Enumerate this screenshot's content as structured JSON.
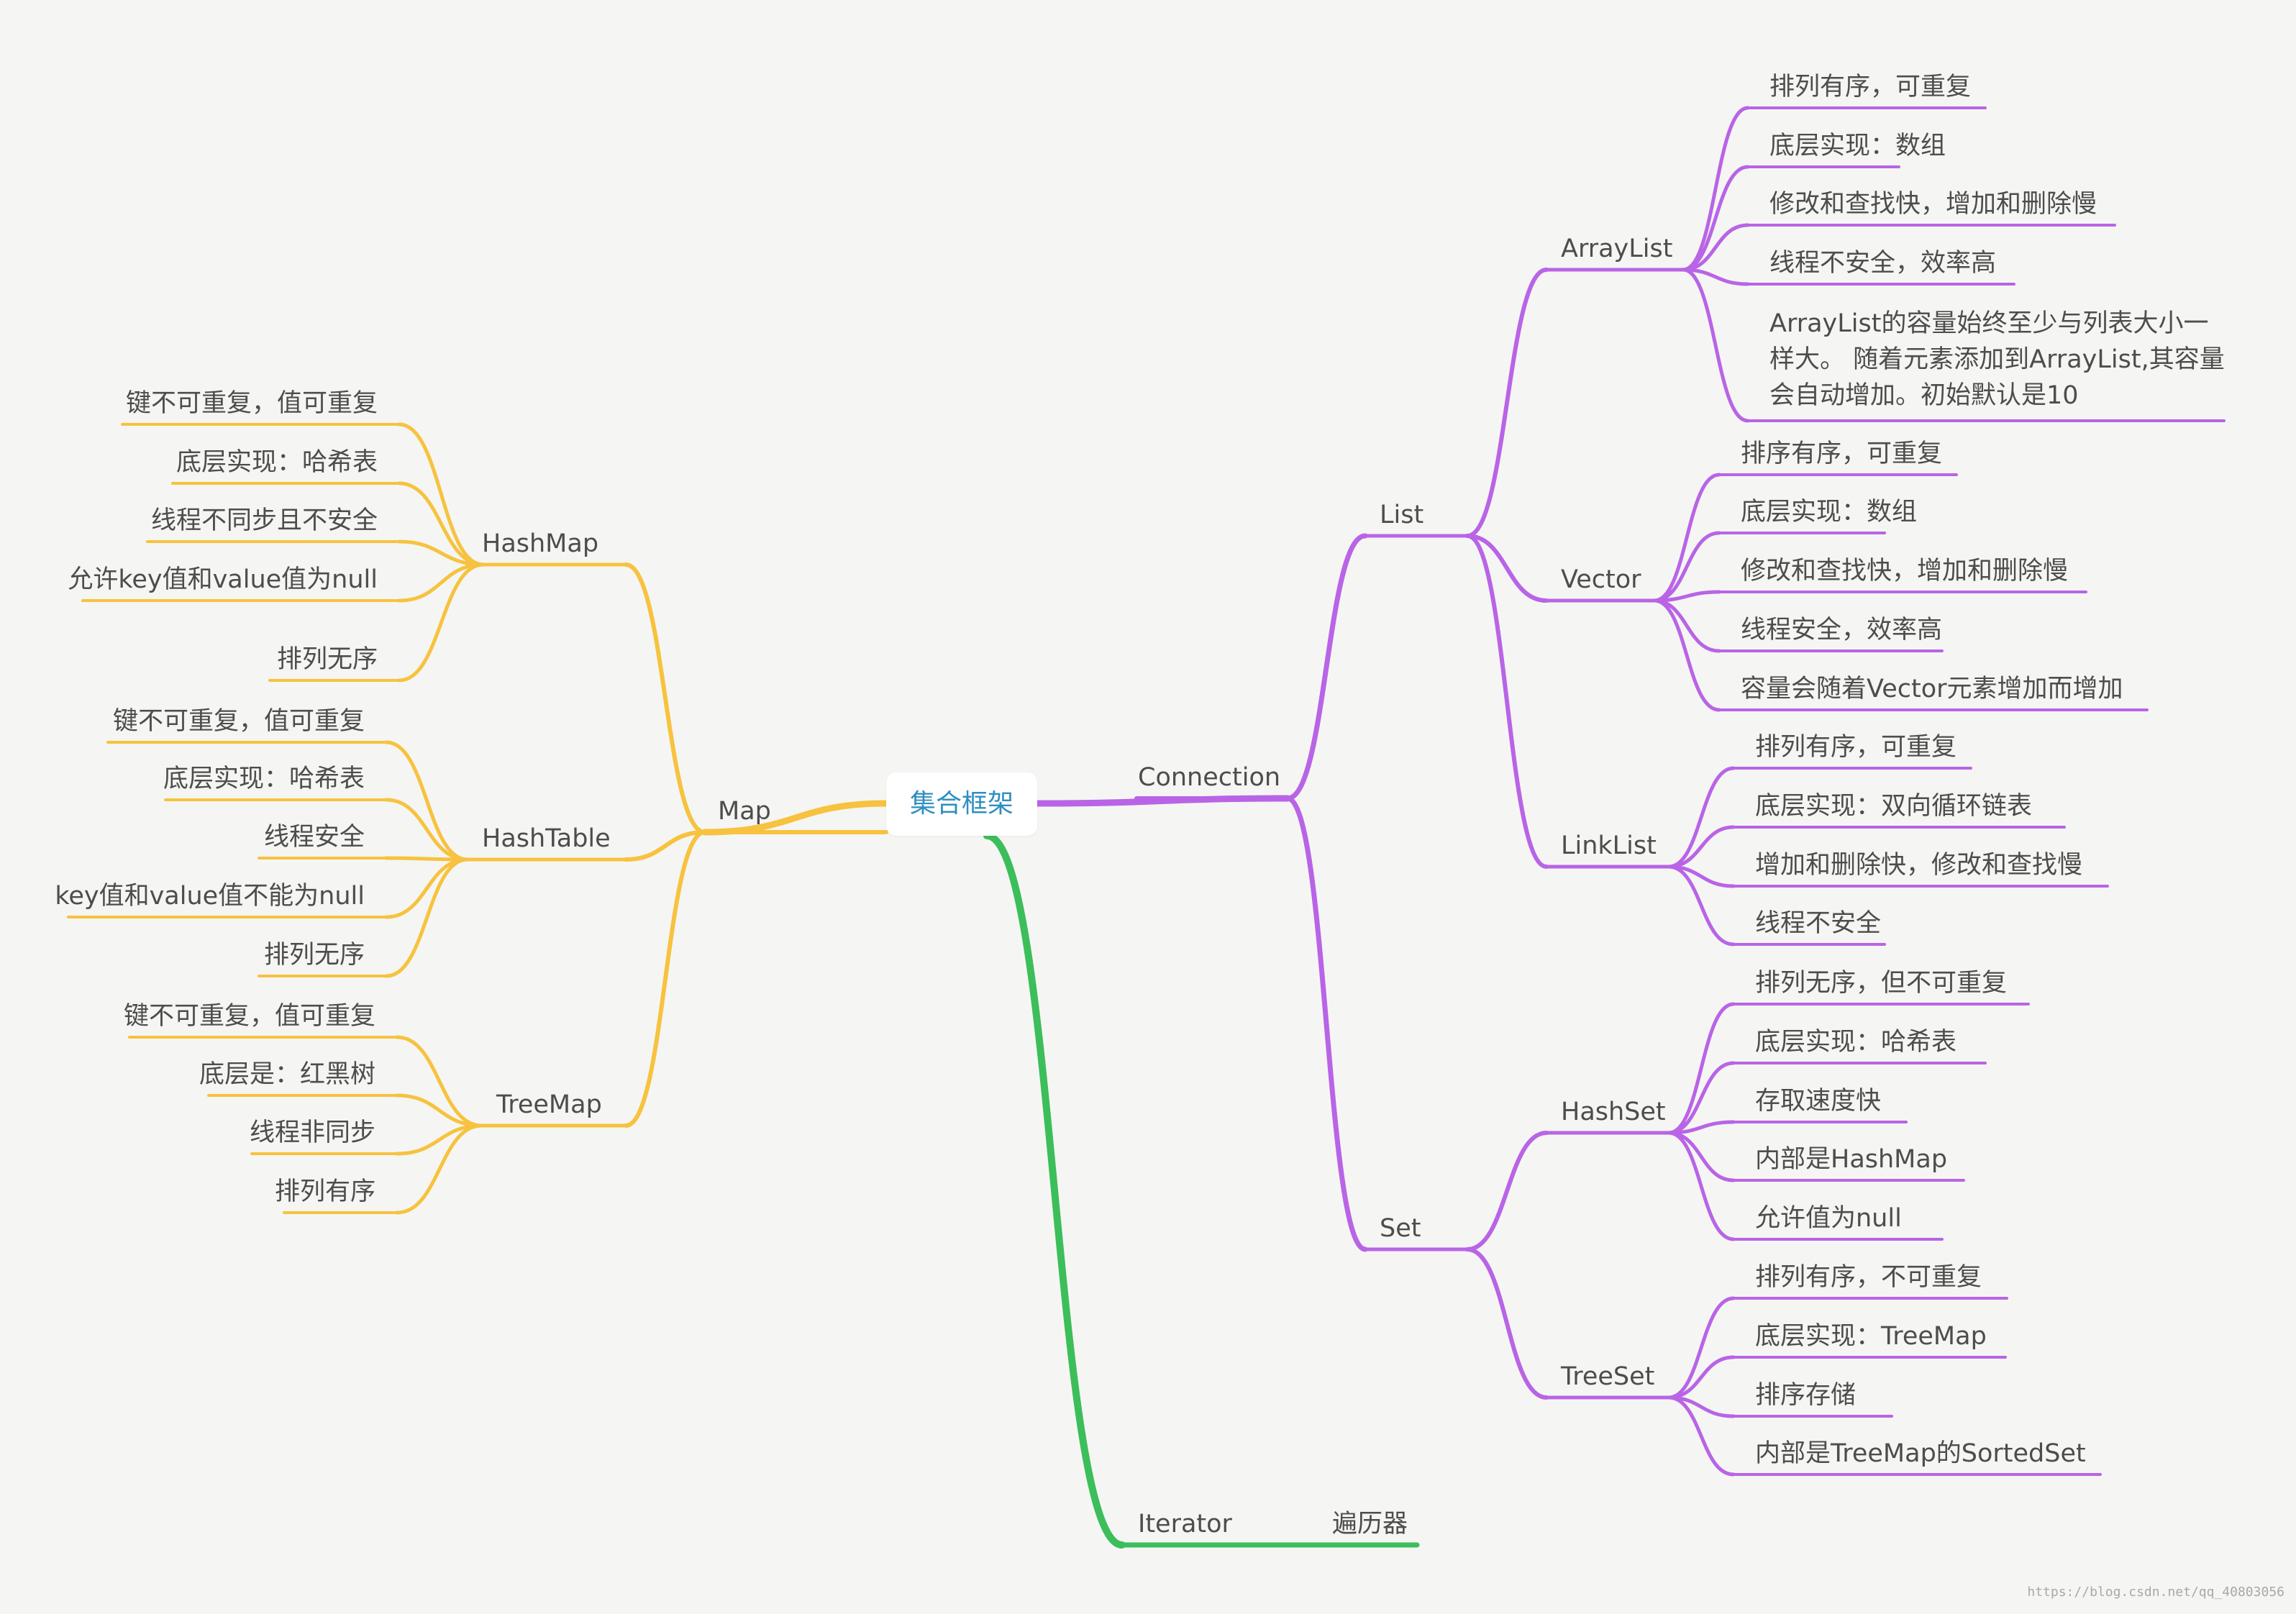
{
  "colors": {
    "map": "#f7c23f",
    "connection": "#b964e6",
    "iterator": "#3cbe5a",
    "root_text": "#2f8fbf",
    "text": "#4d4d4d"
  },
  "root": "集合框架",
  "map": {
    "label": "Map",
    "hashmap": {
      "label": "HashMap",
      "items": [
        "键不可重复，值可重复",
        "底层实现：哈希表",
        "线程不同步且不安全",
        "允许key值和value值为null",
        "排列无序"
      ]
    },
    "hashtable": {
      "label": "HashTable",
      "items": [
        "键不可重复，值可重复",
        "底层实现：哈希表",
        "线程安全",
        "key值和value值不能为null",
        "排列无序"
      ]
    },
    "treemap": {
      "label": "TreeMap",
      "items": [
        "键不可重复，值可重复",
        "底层是：红黑树",
        "线程非同步",
        "排列有序"
      ]
    }
  },
  "connection": {
    "label": "Connection",
    "list": {
      "label": "List",
      "arraylist": {
        "label": "ArrayList",
        "items": [
          "排列有序，可重复",
          "底层实现：数组",
          "修改和查找快，增加和删除慢",
          "线程不安全，效率高",
          "ArrayList的容量始终至少与列表大小一样大。 随着元素添加到ArrayList,其容量会自动增加。初始默认是10"
        ]
      },
      "vector": {
        "label": "Vector",
        "items": [
          "排序有序，可重复",
          "底层实现：数组",
          "修改和查找快，增加和删除慢",
          "线程安全，效率高",
          "容量会随着Vector元素增加而增加"
        ]
      },
      "linklist": {
        "label": "LinkList",
        "items": [
          "排列有序，可重复",
          "底层实现：双向循环链表",
          "增加和删除快，修改和查找慢",
          "线程不安全"
        ]
      }
    },
    "set": {
      "label": "Set",
      "hashset": {
        "label": "HashSet",
        "items": [
          "排列无序，但不可重复",
          "底层实现：哈希表",
          "存取速度快",
          "内部是HashMap",
          "允许值为null"
        ]
      },
      "treeset": {
        "label": "TreeSet",
        "items": [
          "排列有序，不可重复",
          "底层实现：TreeMap",
          "排序存储",
          "内部是TreeMap的SortedSet"
        ]
      }
    }
  },
  "iterator": {
    "label": "Iterator",
    "desc": "遍历器"
  },
  "watermark": "https://blog.csdn.net/qq_40803056"
}
